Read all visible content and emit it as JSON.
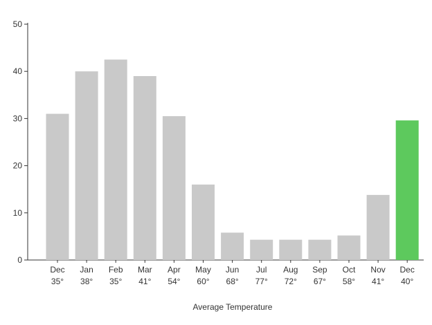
{
  "chart_data": {
    "type": "bar",
    "categories": [
      "Dec",
      "Jan",
      "Feb",
      "Mar",
      "Apr",
      "May",
      "Jun",
      "Jul",
      "Aug",
      "Sep",
      "Oct",
      "Nov",
      "Dec"
    ],
    "subcategories": [
      "35°",
      "38°",
      "35°",
      "41°",
      "54°",
      "60°",
      "68°",
      "77°",
      "72°",
      "67°",
      "58°",
      "41°",
      "40°"
    ],
    "values": [
      31,
      40,
      42.5,
      39,
      30.5,
      16,
      5.8,
      4.3,
      4.3,
      4.3,
      5.2,
      13.8,
      29.6
    ],
    "highlight_index": 12,
    "title": "",
    "xlabel": "Average Temperature",
    "ylabel": "",
    "ylim": [
      0,
      50
    ],
    "yticks": [
      0,
      10,
      20,
      30,
      40,
      50
    ],
    "grid": false,
    "colors": {
      "bar": "#c9c9c9",
      "highlight": "#5dc95d",
      "axis": "#333333"
    }
  }
}
